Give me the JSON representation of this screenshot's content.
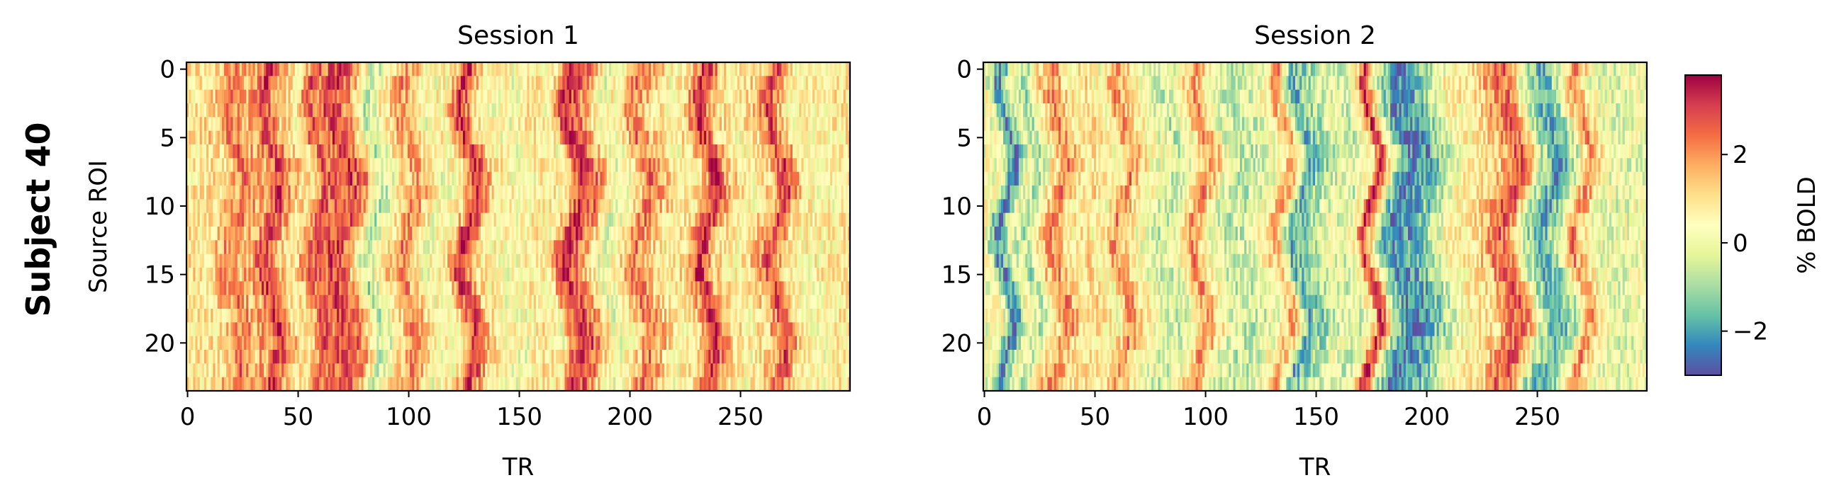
{
  "figure": {
    "row_label": "Subject 40"
  },
  "chart_data": [
    {
      "type": "heatmap",
      "title": "Session 1",
      "xlabel": "TR",
      "ylabel": "Source ROI",
      "xlim": [
        0,
        299
      ],
      "ylim": [
        23,
        0
      ],
      "n_rows": 24,
      "n_cols": 300,
      "x_ticks": [
        0,
        50,
        100,
        150,
        200,
        250
      ],
      "y_ticks": [
        0,
        5,
        10,
        15,
        20
      ],
      "dominant_column_pattern": [
        {
          "x": 6,
          "v": 0.8
        },
        {
          "x": 15,
          "v": 1.2
        },
        {
          "x": 22,
          "v": 2.4
        },
        {
          "x": 28,
          "v": 1.6
        },
        {
          "x": 33,
          "v": 1.8
        },
        {
          "x": 38,
          "v": 3.2
        },
        {
          "x": 44,
          "v": 1.6
        },
        {
          "x": 52,
          "v": 0.6
        },
        {
          "x": 58,
          "v": 2.6
        },
        {
          "x": 63,
          "v": 2.4
        },
        {
          "x": 70,
          "v": 3.0
        },
        {
          "x": 77,
          "v": 2.0
        },
        {
          "x": 84,
          "v": -0.8
        },
        {
          "x": 90,
          "v": 0.4
        },
        {
          "x": 100,
          "v": 2.2
        },
        {
          "x": 110,
          "v": 0.2
        },
        {
          "x": 120,
          "v": 0.6
        },
        {
          "x": 127,
          "v": 3.4
        },
        {
          "x": 134,
          "v": 1.0
        },
        {
          "x": 142,
          "v": 0.4
        },
        {
          "x": 150,
          "v": 0.2
        },
        {
          "x": 158,
          "v": 0.8
        },
        {
          "x": 166,
          "v": 0.4
        },
        {
          "x": 174,
          "v": 3.4
        },
        {
          "x": 181,
          "v": 2.4
        },
        {
          "x": 190,
          "v": 0.0
        },
        {
          "x": 198,
          "v": 0.6
        },
        {
          "x": 205,
          "v": 2.4
        },
        {
          "x": 212,
          "v": 1.4
        },
        {
          "x": 220,
          "v": 0.4
        },
        {
          "x": 228,
          "v": 1.0
        },
        {
          "x": 235,
          "v": 3.4
        },
        {
          "x": 242,
          "v": 1.2
        },
        {
          "x": 252,
          "v": 0.4
        },
        {
          "x": 260,
          "v": 1.4
        },
        {
          "x": 267,
          "v": 3.0
        },
        {
          "x": 275,
          "v": 0.6
        },
        {
          "x": 285,
          "v": 0.4
        },
        {
          "x": 299,
          "v": 0.8
        }
      ]
    },
    {
      "type": "heatmap",
      "title": "Session 2",
      "xlabel": "TR",
      "ylabel": "",
      "xlim": [
        0,
        299
      ],
      "ylim": [
        23,
        0
      ],
      "n_rows": 24,
      "n_cols": 300,
      "x_ticks": [
        0,
        50,
        100,
        150,
        200,
        250
      ],
      "y_ticks": [
        0,
        5,
        10,
        15,
        20
      ],
      "dominant_column_pattern": [
        {
          "x": 4,
          "v": 0.4
        },
        {
          "x": 10,
          "v": -2.6
        },
        {
          "x": 16,
          "v": 0.2
        },
        {
          "x": 22,
          "v": -0.8
        },
        {
          "x": 28,
          "v": 1.0
        },
        {
          "x": 34,
          "v": 2.2
        },
        {
          "x": 42,
          "v": 0.6
        },
        {
          "x": 50,
          "v": 1.0
        },
        {
          "x": 56,
          "v": 0.2
        },
        {
          "x": 63,
          "v": 2.2
        },
        {
          "x": 70,
          "v": 0.6
        },
        {
          "x": 78,
          "v": 0.0
        },
        {
          "x": 84,
          "v": -0.6
        },
        {
          "x": 92,
          "v": 0.4
        },
        {
          "x": 98,
          "v": 2.2
        },
        {
          "x": 106,
          "v": 0.0
        },
        {
          "x": 114,
          "v": -0.6
        },
        {
          "x": 122,
          "v": -0.4
        },
        {
          "x": 130,
          "v": 0.4
        },
        {
          "x": 136,
          "v": 2.0
        },
        {
          "x": 142,
          "v": -1.8
        },
        {
          "x": 150,
          "v": -1.0
        },
        {
          "x": 158,
          "v": 0.0
        },
        {
          "x": 166,
          "v": -0.4
        },
        {
          "x": 172,
          "v": 0.8
        },
        {
          "x": 175,
          "v": 3.4
        },
        {
          "x": 182,
          "v": -0.8
        },
        {
          "x": 188,
          "v": -2.4
        },
        {
          "x": 196,
          "v": -2.0
        },
        {
          "x": 204,
          "v": -1.0
        },
        {
          "x": 212,
          "v": 0.4
        },
        {
          "x": 220,
          "v": 0.6
        },
        {
          "x": 228,
          "v": 1.2
        },
        {
          "x": 236,
          "v": 2.6
        },
        {
          "x": 241,
          "v": 2.4
        },
        {
          "x": 248,
          "v": -0.6
        },
        {
          "x": 256,
          "v": -2.0
        },
        {
          "x": 264,
          "v": -0.4
        },
        {
          "x": 270,
          "v": 2.2
        },
        {
          "x": 278,
          "v": 0.2
        },
        {
          "x": 286,
          "v": -0.2
        },
        {
          "x": 299,
          "v": 0.2
        }
      ]
    }
  ],
  "colorbar": {
    "label": "% BOLD",
    "vmin": -3.0,
    "vmax": 3.8,
    "ticks": [
      2,
      0,
      -2
    ],
    "tick_labels": [
      "2",
      "0",
      "−2"
    ],
    "colormap": "Spectral_r",
    "colormap_stops": [
      "#5e4fa2",
      "#3288bd",
      "#66c2a5",
      "#abdda4",
      "#e6f598",
      "#ffffbf",
      "#fee08b",
      "#fdae61",
      "#f46d43",
      "#d53e4f",
      "#9e0142"
    ]
  }
}
